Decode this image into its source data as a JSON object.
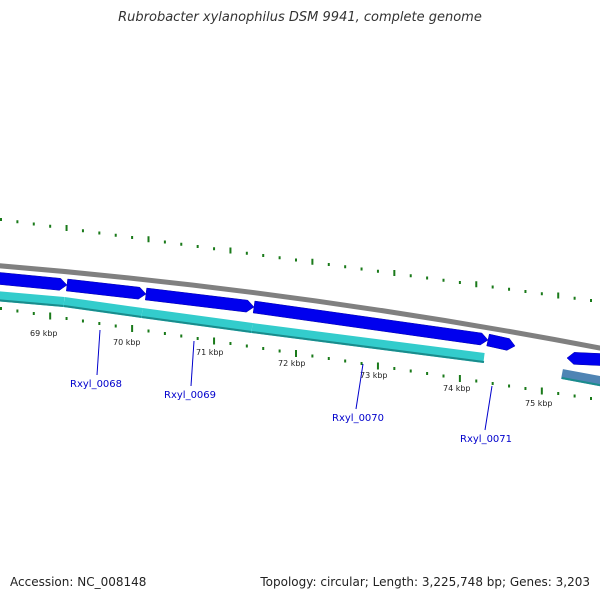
{
  "title": "Rubrobacter xylanophilus DSM 9941, complete genome",
  "footer": {
    "accession": "Accession: NC_008148",
    "summary": "Topology: circular; Length: 3,225,748 bp; Genes: 3,203"
  },
  "colors": {
    "backbone": "#808080",
    "forward_gene": "#0000ee",
    "cds": "#33cccc",
    "rna": "#4f84b4",
    "tick": "#1a7a1a",
    "gene_label": "#0000cc"
  },
  "kbp_labels": [
    "69 kbp",
    "70 kbp",
    "71 kbp",
    "72 kbp",
    "73 kbp",
    "74 kbp",
    "75 kbp"
  ],
  "gene_labels": [
    "Rxyl_0068",
    "Rxyl_0069",
    "Rxyl_0070",
    "Rxyl_0071"
  ]
}
